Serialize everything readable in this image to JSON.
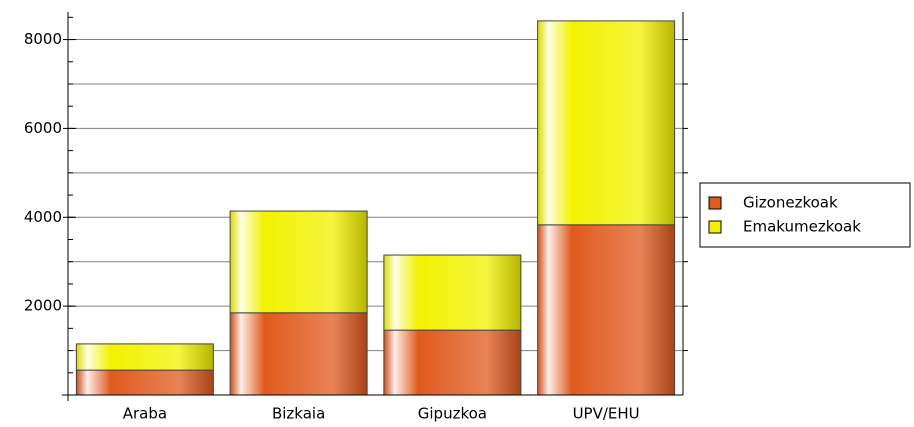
{
  "chart_data": {
    "type": "stacked_bar",
    "categories": [
      "Araba",
      "Bizkaia",
      "Gipuzkoa",
      "UPV/EHU"
    ],
    "series": [
      {
        "name": "Gizonezkoak",
        "color": "#e05a1e",
        "values": [
          560,
          1850,
          1460,
          3830
        ]
      },
      {
        "name": "Emakumezkoak",
        "color": "#f2f200",
        "values": [
          590,
          2290,
          1690,
          4590
        ]
      }
    ],
    "ylim": [
      0,
      8620
    ],
    "yticks": [
      2000,
      4000,
      6000,
      8000
    ],
    "grid_lines": [
      1000,
      2000,
      3000,
      4000,
      5000,
      6000,
      7000,
      8000
    ],
    "legend": "right"
  }
}
